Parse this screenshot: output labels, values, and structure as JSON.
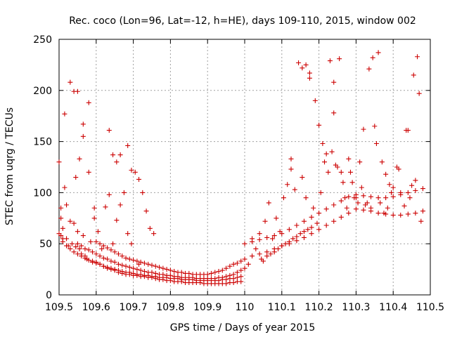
{
  "chart_data": {
    "type": "scatter",
    "title": "Rec. coco (Lon=96, Lat=-12, h=HE), days 109-110, 2015, window 002",
    "xlabel": "GPS time / Days of year 2015",
    "ylabel": "STEC from uqrg / TECUs",
    "xlim": [
      109.5,
      110.5
    ],
    "ylim": [
      0,
      250
    ],
    "xticks": [
      109.5,
      109.6,
      109.7,
      109.8,
      109.9,
      110,
      110.1,
      110.2,
      110.3,
      110.4,
      110.5
    ],
    "xtick_labels": [
      "109.5",
      "109.6",
      "109.7",
      "109.8",
      "109.9",
      "110",
      "110.1",
      "110.2",
      "110.3",
      "110.4",
      "110.5"
    ],
    "yticks": [
      0,
      50,
      100,
      150,
      200,
      250
    ],
    "ytick_labels": [
      "0",
      "50",
      "100",
      "150",
      "200",
      "250"
    ],
    "grid": true,
    "marker": "plus",
    "color": "#cc0000",
    "points": [
      [
        109.5,
        130
      ],
      [
        109.505,
        85
      ],
      [
        109.505,
        75
      ],
      [
        109.505,
        58
      ],
      [
        109.51,
        55
      ],
      [
        109.51,
        65
      ],
      [
        109.515,
        105
      ],
      [
        109.515,
        177
      ],
      [
        109.52,
        88
      ],
      [
        109.52,
        55
      ],
      [
        109.525,
        48
      ],
      [
        109.53,
        208
      ],
      [
        109.53,
        72
      ],
      [
        109.535,
        50
      ],
      [
        109.54,
        199
      ],
      [
        109.54,
        70
      ],
      [
        109.545,
        115
      ],
      [
        109.545,
        47
      ],
      [
        109.55,
        199
      ],
      [
        109.55,
        62
      ],
      [
        109.555,
        133
      ],
      [
        109.555,
        45
      ],
      [
        109.56,
        40
      ],
      [
        109.565,
        155
      ],
      [
        109.565,
        167
      ],
      [
        109.565,
        58
      ],
      [
        109.57,
        38
      ],
      [
        109.575,
        35
      ],
      [
        109.58,
        188
      ],
      [
        109.58,
        120
      ],
      [
        109.585,
        52
      ],
      [
        109.59,
        33
      ],
      [
        109.595,
        85
      ],
      [
        109.595,
        75
      ],
      [
        109.6,
        32
      ],
      [
        109.605,
        62
      ],
      [
        109.61,
        30
      ],
      [
        109.615,
        45
      ],
      [
        109.62,
        28
      ],
      [
        109.625,
        86
      ],
      [
        109.63,
        26
      ],
      [
        109.635,
        161
      ],
      [
        109.635,
        98
      ],
      [
        109.64,
        25
      ],
      [
        109.645,
        137
      ],
      [
        109.645,
        50
      ],
      [
        109.65,
        24
      ],
      [
        109.655,
        130
      ],
      [
        109.655,
        73
      ],
      [
        109.66,
        22
      ],
      [
        109.665,
        137
      ],
      [
        109.665,
        88
      ],
      [
        109.67,
        21
      ],
      [
        109.675,
        100
      ],
      [
        109.68,
        20
      ],
      [
        109.685,
        146
      ],
      [
        109.685,
        60
      ],
      [
        109.69,
        20
      ],
      [
        109.695,
        122
      ],
      [
        109.695,
        50
      ],
      [
        109.7,
        19
      ],
      [
        109.705,
        120
      ],
      [
        109.71,
        19
      ],
      [
        109.715,
        113
      ],
      [
        109.715,
        30
      ],
      [
        109.72,
        18
      ],
      [
        109.725,
        100
      ],
      [
        109.73,
        18
      ],
      [
        109.735,
        82
      ],
      [
        109.74,
        17
      ],
      [
        109.745,
        65
      ],
      [
        109.75,
        17
      ],
      [
        109.755,
        60
      ],
      [
        109.76,
        16
      ],
      [
        109.77,
        15
      ],
      [
        109.78,
        15
      ],
      [
        109.79,
        14
      ],
      [
        109.8,
        14
      ],
      [
        109.81,
        13
      ],
      [
        109.82,
        13
      ],
      [
        109.83,
        13
      ],
      [
        109.84,
        12
      ],
      [
        109.85,
        12
      ],
      [
        109.86,
        12
      ],
      [
        109.87,
        12
      ],
      [
        109.88,
        12
      ],
      [
        109.89,
        11
      ],
      [
        109.9,
        11
      ],
      [
        109.91,
        11
      ],
      [
        109.92,
        11
      ],
      [
        109.93,
        11
      ],
      [
        109.94,
        11
      ],
      [
        109.95,
        11
      ],
      [
        109.96,
        12
      ],
      [
        109.97,
        12
      ],
      [
        109.98,
        13
      ],
      [
        109.99,
        13
      ],
      [
        109.5,
        60
      ],
      [
        109.51,
        52
      ],
      [
        109.52,
        48
      ],
      [
        109.53,
        45
      ],
      [
        109.54,
        42
      ],
      [
        109.55,
        40
      ],
      [
        109.56,
        38
      ],
      [
        109.57,
        36
      ],
      [
        109.58,
        34
      ],
      [
        109.59,
        32
      ],
      [
        109.6,
        31
      ],
      [
        109.61,
        30
      ],
      [
        109.62,
        28
      ],
      [
        109.63,
        27
      ],
      [
        109.64,
        26
      ],
      [
        109.65,
        25
      ],
      [
        109.66,
        24
      ],
      [
        109.67,
        23
      ],
      [
        109.68,
        22
      ],
      [
        109.69,
        22
      ],
      [
        109.7,
        21
      ],
      [
        109.71,
        20
      ],
      [
        109.72,
        20
      ],
      [
        109.73,
        19
      ],
      [
        109.74,
        19
      ],
      [
        109.75,
        18
      ],
      [
        109.76,
        18
      ],
      [
        109.77,
        17
      ],
      [
        109.78,
        17
      ],
      [
        109.79,
        17
      ],
      [
        109.8,
        16
      ],
      [
        109.81,
        16
      ],
      [
        109.82,
        16
      ],
      [
        109.83,
        15
      ],
      [
        109.84,
        15
      ],
      [
        109.85,
        15
      ],
      [
        109.86,
        15
      ],
      [
        109.87,
        14
      ],
      [
        109.88,
        14
      ],
      [
        109.89,
        14
      ],
      [
        109.9,
        14
      ],
      [
        109.91,
        14
      ],
      [
        109.92,
        14
      ],
      [
        109.93,
        14
      ],
      [
        109.94,
        15
      ],
      [
        109.95,
        15
      ],
      [
        109.96,
        16
      ],
      [
        109.97,
        16
      ],
      [
        109.98,
        17
      ],
      [
        109.99,
        18
      ],
      [
        109.55,
        50
      ],
      [
        109.56,
        48
      ],
      [
        109.57,
        45
      ],
      [
        109.58,
        44
      ],
      [
        109.59,
        42
      ],
      [
        109.6,
        40
      ],
      [
        109.61,
        38
      ],
      [
        109.62,
        36
      ],
      [
        109.63,
        35
      ],
      [
        109.64,
        33
      ],
      [
        109.65,
        32
      ],
      [
        109.66,
        30
      ],
      [
        109.67,
        29
      ],
      [
        109.68,
        28
      ],
      [
        109.69,
        27
      ],
      [
        109.7,
        26
      ],
      [
        109.71,
        25
      ],
      [
        109.72,
        24
      ],
      [
        109.73,
        23
      ],
      [
        109.74,
        22
      ],
      [
        109.75,
        22
      ],
      [
        109.76,
        21
      ],
      [
        109.77,
        20
      ],
      [
        109.78,
        20
      ],
      [
        109.79,
        19
      ],
      [
        109.8,
        19
      ],
      [
        109.81,
        18
      ],
      [
        109.82,
        18
      ],
      [
        109.83,
        17
      ],
      [
        109.84,
        17
      ],
      [
        109.85,
        17
      ],
      [
        109.86,
        17
      ],
      [
        109.87,
        16
      ],
      [
        109.88,
        16
      ],
      [
        109.89,
        16
      ],
      [
        109.9,
        16
      ],
      [
        109.91,
        16
      ],
      [
        109.92,
        16
      ],
      [
        109.93,
        17
      ],
      [
        109.94,
        17
      ],
      [
        109.95,
        18
      ],
      [
        109.96,
        19
      ],
      [
        109.97,
        20
      ],
      [
        109.98,
        22
      ],
      [
        109.99,
        24
      ],
      [
        109.6,
        52
      ],
      [
        109.61,
        50
      ],
      [
        109.62,
        48
      ],
      [
        109.63,
        46
      ],
      [
        109.64,
        44
      ],
      [
        109.65,
        42
      ],
      [
        109.66,
        40
      ],
      [
        109.67,
        38
      ],
      [
        109.68,
        36
      ],
      [
        109.69,
        35
      ],
      [
        109.7,
        34
      ],
      [
        109.71,
        33
      ],
      [
        109.72,
        32
      ],
      [
        109.73,
        31
      ],
      [
        109.74,
        30
      ],
      [
        109.75,
        29
      ],
      [
        109.76,
        28
      ],
      [
        109.77,
        27
      ],
      [
        109.78,
        26
      ],
      [
        109.79,
        25
      ],
      [
        109.8,
        24
      ],
      [
        109.81,
        23
      ],
      [
        109.82,
        22
      ],
      [
        109.83,
        22
      ],
      [
        109.84,
        21
      ],
      [
        109.85,
        21
      ],
      [
        109.86,
        20
      ],
      [
        109.87,
        20
      ],
      [
        109.88,
        20
      ],
      [
        109.89,
        20
      ],
      [
        109.9,
        20
      ],
      [
        109.91,
        21
      ],
      [
        109.92,
        22
      ],
      [
        109.93,
        23
      ],
      [
        109.94,
        24
      ],
      [
        109.95,
        26
      ],
      [
        109.96,
        28
      ],
      [
        109.97,
        30
      ],
      [
        109.98,
        31
      ],
      [
        109.99,
        33
      ],
      [
        110.0,
        26
      ],
      [
        110.01,
        30
      ],
      [
        110.02,
        55
      ],
      [
        110.03,
        45
      ],
      [
        110.04,
        60
      ],
      [
        110.045,
        35
      ],
      [
        110.05,
        33
      ],
      [
        110.055,
        72
      ],
      [
        110.06,
        38
      ],
      [
        110.065,
        90
      ],
      [
        110.07,
        40
      ],
      [
        110.075,
        55
      ],
      [
        110.08,
        42
      ],
      [
        110.085,
        75
      ],
      [
        110.09,
        45
      ],
      [
        110.095,
        62
      ],
      [
        110.1,
        48
      ],
      [
        110.105,
        95
      ],
      [
        110.11,
        50
      ],
      [
        110.115,
        108
      ],
      [
        110.12,
        52
      ],
      [
        110.125,
        133
      ],
      [
        110.125,
        123
      ],
      [
        110.13,
        55
      ],
      [
        110.135,
        103
      ],
      [
        110.14,
        57
      ],
      [
        110.145,
        227
      ],
      [
        110.15,
        60
      ],
      [
        110.155,
        222
      ],
      [
        110.155,
        115
      ],
      [
        110.16,
        62
      ],
      [
        110.165,
        225
      ],
      [
        110.165,
        95
      ],
      [
        110.17,
        64
      ],
      [
        110.175,
        217
      ],
      [
        110.175,
        212
      ],
      [
        110.18,
        66
      ],
      [
        110.185,
        85
      ],
      [
        110.19,
        190
      ],
      [
        110.195,
        70
      ],
      [
        110.2,
        166
      ],
      [
        110.205,
        100
      ],
      [
        110.21,
        148
      ],
      [
        110.215,
        130
      ],
      [
        110.22,
        138
      ],
      [
        110.225,
        120
      ],
      [
        110.23,
        229
      ],
      [
        110.235,
        140
      ],
      [
        110.24,
        208
      ],
      [
        110.24,
        178
      ],
      [
        110.245,
        127
      ],
      [
        110.25,
        125
      ],
      [
        110.255,
        231
      ],
      [
        110.26,
        120
      ],
      [
        110.265,
        110
      ],
      [
        110.27,
        95
      ],
      [
        110.275,
        85
      ],
      [
        110.28,
        133
      ],
      [
        110.285,
        120
      ],
      [
        110.29,
        110
      ],
      [
        110.295,
        95
      ],
      [
        110.3,
        95
      ],
      [
        110.305,
        90
      ],
      [
        110.31,
        130
      ],
      [
        110.315,
        105
      ],
      [
        110.32,
        162
      ],
      [
        110.325,
        88
      ],
      [
        110.33,
        90
      ],
      [
        110.335,
        221
      ],
      [
        110.34,
        85
      ],
      [
        110.345,
        232
      ],
      [
        110.35,
        165
      ],
      [
        110.355,
        148
      ],
      [
        110.36,
        237
      ],
      [
        110.365,
        90
      ],
      [
        110.37,
        130
      ],
      [
        110.375,
        80
      ],
      [
        110.38,
        118
      ],
      [
        110.385,
        85
      ],
      [
        110.39,
        108
      ],
      [
        110.395,
        100
      ],
      [
        110.4,
        105
      ],
      [
        110.41,
        125
      ],
      [
        110.415,
        123
      ],
      [
        110.42,
        100
      ],
      [
        110.43,
        87
      ],
      [
        110.435,
        161
      ],
      [
        110.44,
        161
      ],
      [
        110.445,
        95
      ],
      [
        110.45,
        107
      ],
      [
        110.455,
        215
      ],
      [
        110.46,
        112
      ],
      [
        110.465,
        233
      ],
      [
        110.47,
        197
      ],
      [
        110.475,
        72
      ],
      [
        110.0,
        50
      ],
      [
        110.02,
        52
      ],
      [
        110.04,
        54
      ],
      [
        110.06,
        56
      ],
      [
        110.08,
        58
      ],
      [
        110.1,
        60
      ],
      [
        110.12,
        64
      ],
      [
        110.14,
        68
      ],
      [
        110.16,
        72
      ],
      [
        110.18,
        76
      ],
      [
        110.2,
        80
      ],
      [
        110.22,
        84
      ],
      [
        110.24,
        88
      ],
      [
        110.26,
        92
      ],
      [
        110.28,
        96
      ],
      [
        110.3,
        98
      ],
      [
        110.32,
        97
      ],
      [
        110.34,
        96
      ],
      [
        110.36,
        95
      ],
      [
        110.38,
        95
      ],
      [
        110.4,
        96
      ],
      [
        110.42,
        98
      ],
      [
        110.44,
        100
      ],
      [
        110.46,
        102
      ],
      [
        110.48,
        104
      ],
      [
        110.0,
        35
      ],
      [
        110.02,
        38
      ],
      [
        110.04,
        40
      ],
      [
        110.06,
        42
      ],
      [
        110.08,
        45
      ],
      [
        110.1,
        48
      ],
      [
        110.12,
        50
      ],
      [
        110.14,
        53
      ],
      [
        110.16,
        56
      ],
      [
        110.18,
        60
      ],
      [
        110.2,
        64
      ],
      [
        110.22,
        68
      ],
      [
        110.24,
        72
      ],
      [
        110.26,
        76
      ],
      [
        110.28,
        80
      ],
      [
        110.3,
        84
      ],
      [
        110.32,
        83
      ],
      [
        110.34,
        82
      ],
      [
        110.36,
        80
      ],
      [
        110.38,
        79
      ],
      [
        110.4,
        78
      ],
      [
        110.42,
        78
      ],
      [
        110.44,
        79
      ],
      [
        110.46,
        80
      ],
      [
        110.48,
        82
      ]
    ]
  }
}
